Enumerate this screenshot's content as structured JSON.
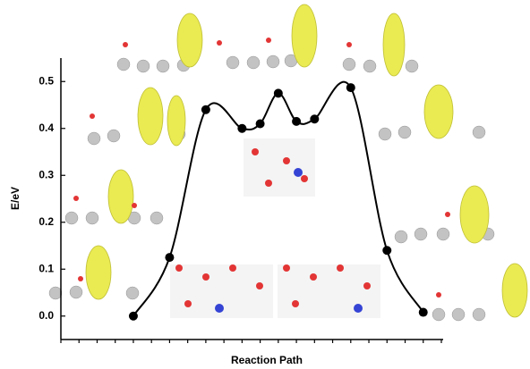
{
  "chart_data": {
    "type": "line",
    "x": [
      0,
      2,
      4,
      6,
      7,
      8,
      9,
      10,
      12,
      14,
      16
    ],
    "categories": [
      null,
      null,
      null,
      null,
      null,
      null,
      null,
      null,
      null,
      null,
      null
    ],
    "values": [
      0.0,
      0.125,
      0.44,
      0.4,
      0.41,
      0.475,
      0.415,
      0.42,
      0.487,
      0.14,
      0.008
    ],
    "color": "#000000",
    "xlabel": "Reaction Path",
    "ylabel": "E/eV",
    "xlim": [
      -4,
      17.1
    ],
    "xticks": [
      -4,
      -3,
      -2,
      -1,
      0,
      1,
      2,
      3,
      4,
      5,
      6,
      7,
      8,
      9,
      10,
      11,
      12,
      13,
      14,
      15,
      16,
      17
    ],
    "ylim": [
      -0.05,
      0.55
    ],
    "yticks": [
      {
        "value": 0,
        "label": "0.0"
      },
      0.1,
      0.2,
      0.3,
      0.4,
      0.5
    ]
  }
}
